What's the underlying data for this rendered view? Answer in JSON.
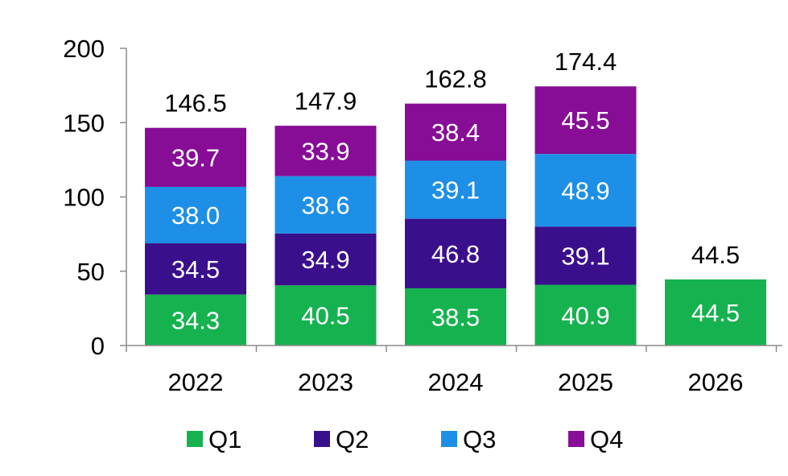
{
  "chart_data": {
    "type": "bar",
    "stacked": true,
    "title": "",
    "xlabel": "",
    "ylabel": "",
    "categories": [
      "2022",
      "2023",
      "2024",
      "2025",
      "2026"
    ],
    "series": [
      {
        "name": "Q1",
        "color": "#16b24f",
        "values": [
          34.3,
          40.5,
          38.5,
          40.9,
          44.5
        ]
      },
      {
        "name": "Q2",
        "color": "#3a0f8c",
        "values": [
          34.5,
          34.9,
          46.8,
          39.1,
          null
        ]
      },
      {
        "name": "Q3",
        "color": "#1e8fe6",
        "values": [
          38.0,
          38.6,
          39.1,
          48.9,
          null
        ]
      },
      {
        "name": "Q4",
        "color": "#870d96",
        "values": [
          39.7,
          33.9,
          38.4,
          45.5,
          null
        ]
      }
    ],
    "totals": [
      "146.5",
      "147.9",
      "162.8",
      "174.4",
      "44.5"
    ],
    "ylim": [
      0,
      200
    ],
    "yticks": [
      0,
      50,
      100,
      150,
      200
    ],
    "grid": false,
    "legend_position": "bottom"
  }
}
